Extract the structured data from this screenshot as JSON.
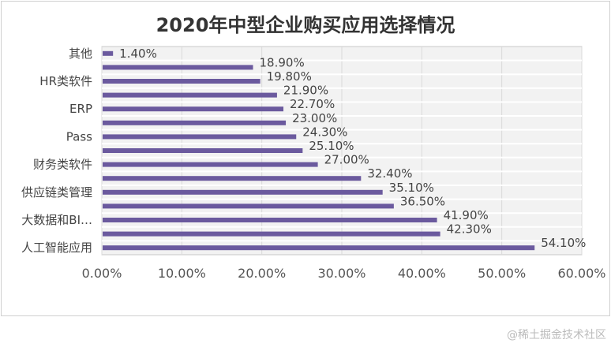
{
  "chart_data": {
    "type": "bar",
    "orientation": "horizontal",
    "title": "2020年中型企业购买应用选择情况",
    "categories": [
      "其他",
      "",
      "HR类软件",
      "",
      "ERP",
      "",
      "Pass",
      "",
      "财务类软件",
      "",
      "供应链类管理",
      "",
      "大数据和BI…",
      "",
      "人工智能应用"
    ],
    "values": [
      1.4,
      18.9,
      19.8,
      21.9,
      22.7,
      23.0,
      24.3,
      25.1,
      27.0,
      32.4,
      35.1,
      36.5,
      41.9,
      42.3,
      54.1
    ],
    "data_labels": [
      "1.40%",
      "18.90%",
      "19.80%",
      "21.90%",
      "22.70%",
      "23.00%",
      "24.30%",
      "25.10%",
      "27.00%",
      "32.40%",
      "35.10%",
      "36.50%",
      "41.90%",
      "42.30%",
      "54.10%"
    ],
    "xlim": [
      0,
      60
    ],
    "xticks": [
      "0.00%",
      "10.00%",
      "20.00%",
      "30.00%",
      "40.00%",
      "50.00%",
      "60.00%"
    ],
    "xlabel": "",
    "ylabel": "",
    "grid": true,
    "legend": "none",
    "colors": {
      "bar": "#6b5a9e",
      "plot_bg": "#f2f2f2",
      "grid": "#d9d9d9"
    }
  },
  "watermark": "@稀土掘金技术社区"
}
